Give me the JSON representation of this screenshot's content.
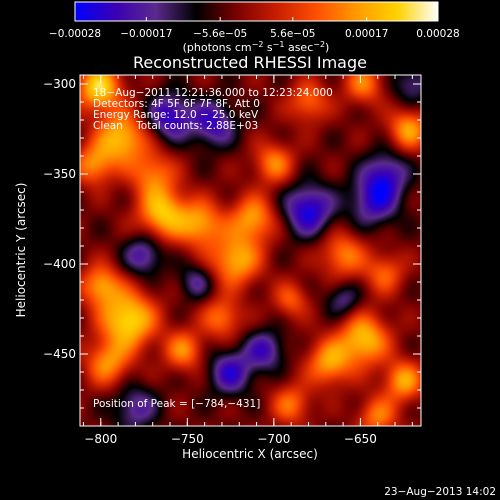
{
  "chart_data": {
    "type": "heatmap",
    "title": "Reconstructed RHESSI Image",
    "xlabel": "Heliocentric X (arcsec)",
    "ylabel": "Heliocentric Y (arcsec)",
    "xlim": [
      -812,
      -615
    ],
    "ylim": [
      -490,
      -295
    ],
    "x_ticks": [
      "−800",
      "−750",
      "−700",
      "−650"
    ],
    "x_tick_values": [
      -800,
      -750,
      -700,
      -650
    ],
    "y_ticks": [
      "−300",
      "−350",
      "−400",
      "−450"
    ],
    "y_tick_values": [
      -300,
      -350,
      -400,
      -450
    ],
    "colorbar": {
      "ticks": [
        "−0.00028",
        "−0.00017",
        "−5.6e−05",
        "5.6e−05",
        "0.00017",
        "0.00028"
      ],
      "tick_values": [
        -0.00028,
        -0.00017,
        -5.6e-05,
        5.6e-05,
        0.00017,
        0.00028
      ],
      "range": [
        -0.00028,
        0.00028
      ],
      "units_prefix": "(photons cm",
      "units_exp1": "−2",
      "units_mid": " s",
      "units_exp2": "−1",
      "units_mid2": " asec",
      "units_exp3": "−2",
      "units_suffix": ")",
      "colormap": "rhessi-fire",
      "stops": [
        "#0000ff",
        "#3a00b4",
        "#5a2a8c",
        "#000000",
        "#7a0000",
        "#c81e00",
        "#ff5000",
        "#ff9b00",
        "#ffd200",
        "#ffffff"
      ]
    },
    "annotations": [
      "18−Aug−2011 12:21:36.000 to 12:23:24.000",
      "Detectors: 4F 5F 6F 7F 8F, Att 0",
      "Energy Range: 12.0 − 25.0 keV",
      "Clean    Total counts: 2.88E+03"
    ],
    "peak_label": "Position of Peak = [−784,−431]",
    "peak": [
      -784,
      -431
    ],
    "sources": [
      {
        "x": -801,
        "y": -302,
        "amp": 0.00026,
        "s": 9
      },
      {
        "x": -788,
        "y": -330,
        "amp": 0.00024,
        "s": 10
      },
      {
        "x": -804,
        "y": -345,
        "amp": 0.00018,
        "s": 8
      },
      {
        "x": -770,
        "y": -350,
        "amp": 0.00016,
        "s": 9
      },
      {
        "x": -764,
        "y": -372,
        "amp": 0.00024,
        "s": 10
      },
      {
        "x": -742,
        "y": -378,
        "amp": 0.0002,
        "s": 9
      },
      {
        "x": -722,
        "y": -398,
        "amp": 0.00022,
        "s": 10
      },
      {
        "x": -712,
        "y": -375,
        "amp": 0.0002,
        "s": 9
      },
      {
        "x": -700,
        "y": -344,
        "amp": 0.00017,
        "s": 8
      },
      {
        "x": -680,
        "y": -310,
        "amp": 0.00015,
        "s": 8
      },
      {
        "x": -648,
        "y": -300,
        "amp": 0.00016,
        "s": 8
      },
      {
        "x": -622,
        "y": -325,
        "amp": 0.0002,
        "s": 8
      },
      {
        "x": -660,
        "y": -395,
        "amp": 0.00017,
        "s": 9
      },
      {
        "x": -636,
        "y": -405,
        "amp": 0.00014,
        "s": 8
      },
      {
        "x": -784,
        "y": -431,
        "amp": 0.00028,
        "s": 11
      },
      {
        "x": -800,
        "y": -412,
        "amp": 0.0002,
        "s": 8
      },
      {
        "x": -796,
        "y": -455,
        "amp": 0.00018,
        "s": 9
      },
      {
        "x": -752,
        "y": -448,
        "amp": 0.00017,
        "s": 8
      },
      {
        "x": -730,
        "y": -430,
        "amp": 0.00016,
        "s": 8
      },
      {
        "x": -668,
        "y": -455,
        "amp": 0.0002,
        "s": 9
      },
      {
        "x": -648,
        "y": -442,
        "amp": 0.00024,
        "s": 10
      },
      {
        "x": -625,
        "y": -465,
        "amp": 0.0002,
        "s": 8
      },
      {
        "x": -640,
        "y": -485,
        "amp": 0.00016,
        "s": 8
      },
      {
        "x": -690,
        "y": -478,
        "amp": 0.00015,
        "s": 8
      },
      {
        "x": -690,
        "y": -420,
        "amp": 0.00013,
        "s": 7
      },
      {
        "x": -760,
        "y": -318,
        "amp": -0.0002,
        "s": 9
      },
      {
        "x": -735,
        "y": -322,
        "amp": -0.00018,
        "s": 9
      },
      {
        "x": -680,
        "y": -370,
        "amp": -0.00022,
        "s": 10
      },
      {
        "x": -642,
        "y": -365,
        "amp": -0.00018,
        "s": 10
      },
      {
        "x": -635,
        "y": -350,
        "amp": -0.00016,
        "s": 9
      },
      {
        "x": -775,
        "y": -395,
        "amp": -0.00016,
        "s": 8
      },
      {
        "x": -725,
        "y": -460,
        "amp": -0.00018,
        "s": 9
      },
      {
        "x": -705,
        "y": -448,
        "amp": -0.00016,
        "s": 8
      },
      {
        "x": -780,
        "y": -480,
        "amp": -0.00014,
        "s": 9
      },
      {
        "x": -660,
        "y": -420,
        "amp": -0.00012,
        "s": 7
      },
      {
        "x": -620,
        "y": -300,
        "amp": -0.00012,
        "s": 8
      },
      {
        "x": -745,
        "y": -410,
        "amp": -0.00012,
        "s": 7
      }
    ]
  },
  "timestamp": "23−Aug−2013 14:02"
}
